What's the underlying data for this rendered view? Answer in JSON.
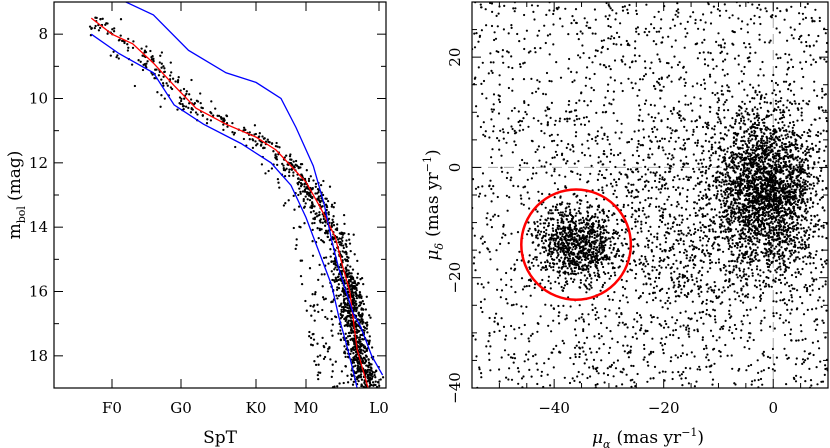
{
  "chart_data": [
    {
      "type": "scatter",
      "title": "",
      "xlabel": "SpT",
      "ylabel": "m_bol (mag)",
      "ylabel_main": "m",
      "ylabel_sub": "bol",
      "ylabel_unit": "(mag)",
      "x_categories": [
        "F0",
        "G0",
        "K0",
        "M0",
        "L0"
      ],
      "y_inverted": true,
      "ylim": [
        19.0,
        7.0
      ],
      "y_ticks": [
        "8",
        "10",
        "12",
        "14",
        "16",
        "18"
      ],
      "series": [
        {
          "kind": "points",
          "color": "#000000",
          "description": "stars following the empirical sequence, dense near M0-M5 at m_bol 14-19"
        },
        {
          "kind": "line",
          "color": "#ff0000",
          "role": "sequence",
          "points": [
            [
              -0.3,
              7.5
            ],
            [
              0.0,
              8.0
            ],
            [
              0.3,
              8.3
            ],
            [
              0.6,
              8.9
            ],
            [
              0.9,
              9.6
            ],
            [
              1.2,
              10.3
            ],
            [
              1.6,
              10.8
            ],
            [
              2.0,
              11.2
            ],
            [
              2.4,
              11.6
            ],
            [
              2.7,
              12.1
            ],
            [
              3.0,
              12.6
            ],
            [
              3.2,
              13.4
            ],
            [
              3.4,
              14.3
            ],
            [
              3.5,
              15.2
            ],
            [
              3.6,
              16.0
            ],
            [
              3.65,
              16.9
            ],
            [
              3.7,
              17.8
            ],
            [
              3.8,
              18.6
            ],
            [
              3.85,
              19.0
            ]
          ]
        },
        {
          "kind": "line",
          "color": "#0000ff",
          "role": "upper-bound",
          "points": [
            [
              0.2,
              7.0
            ],
            [
              0.6,
              7.4
            ],
            [
              1.1,
              8.5
            ],
            [
              1.6,
              9.2
            ],
            [
              2.0,
              9.5
            ],
            [
              2.5,
              10.0
            ],
            [
              2.8,
              10.9
            ],
            [
              3.1,
              12.1
            ],
            [
              3.25,
              13.3
            ],
            [
              3.35,
              14.4
            ],
            [
              3.45,
              15.3
            ],
            [
              3.55,
              16.0
            ],
            [
              3.65,
              16.7
            ],
            [
              3.75,
              17.1
            ],
            [
              3.9,
              18.0
            ],
            [
              4.05,
              18.6
            ]
          ]
        },
        {
          "kind": "line",
          "color": "#0000ff",
          "role": "lower-bound",
          "points": [
            [
              -0.3,
              8.0
            ],
            [
              0.1,
              8.6
            ],
            [
              0.6,
              9.2
            ],
            [
              0.9,
              10.2
            ],
            [
              1.3,
              10.8
            ],
            [
              1.8,
              11.4
            ],
            [
              2.3,
              12.0
            ],
            [
              2.7,
              12.7
            ],
            [
              3.0,
              13.7
            ],
            [
              3.2,
              14.9
            ],
            [
              3.35,
              15.8
            ],
            [
              3.45,
              16.8
            ],
            [
              3.55,
              17.6
            ],
            [
              3.65,
              18.5
            ],
            [
              3.7,
              19.0
            ]
          ]
        }
      ]
    },
    {
      "type": "scatter",
      "title": "",
      "xlabel_main": "μ",
      "xlabel_sub": "α",
      "xlabel_unit": "(mas yr",
      "xlabel_exp": "−1",
      "xlabel_close": ")",
      "ylabel_main": "μ",
      "ylabel_sub": "δ",
      "ylabel_unit": "(mas yr",
      "ylabel_exp": "−1",
      "ylabel_close": ")",
      "xlim": [
        -55,
        10
      ],
      "ylim": [
        -40,
        30
      ],
      "x_ticks": [
        "−40",
        "−20",
        "0"
      ],
      "y_ticks": [
        "20",
        "0",
        "−20",
        "−40"
      ],
      "reference_lines": {
        "x": 0,
        "y": 0,
        "style": "dashed",
        "color": "#aaaaaa"
      },
      "clusters": [
        {
          "name": "",
          "center": [
            -1,
            -4
          ],
          "sigma": [
            4.5,
            7
          ]
        },
        {
          "name": "",
          "center": [
            -36,
            -14
          ],
          "sigma": [
            3.5,
            3.2
          ]
        }
      ],
      "circle": {
        "center": [
          -36,
          -14
        ],
        "radius": 10,
        "color": "#ff0000"
      },
      "series": [
        {
          "kind": "points",
          "color": "#000000"
        }
      ]
    }
  ]
}
